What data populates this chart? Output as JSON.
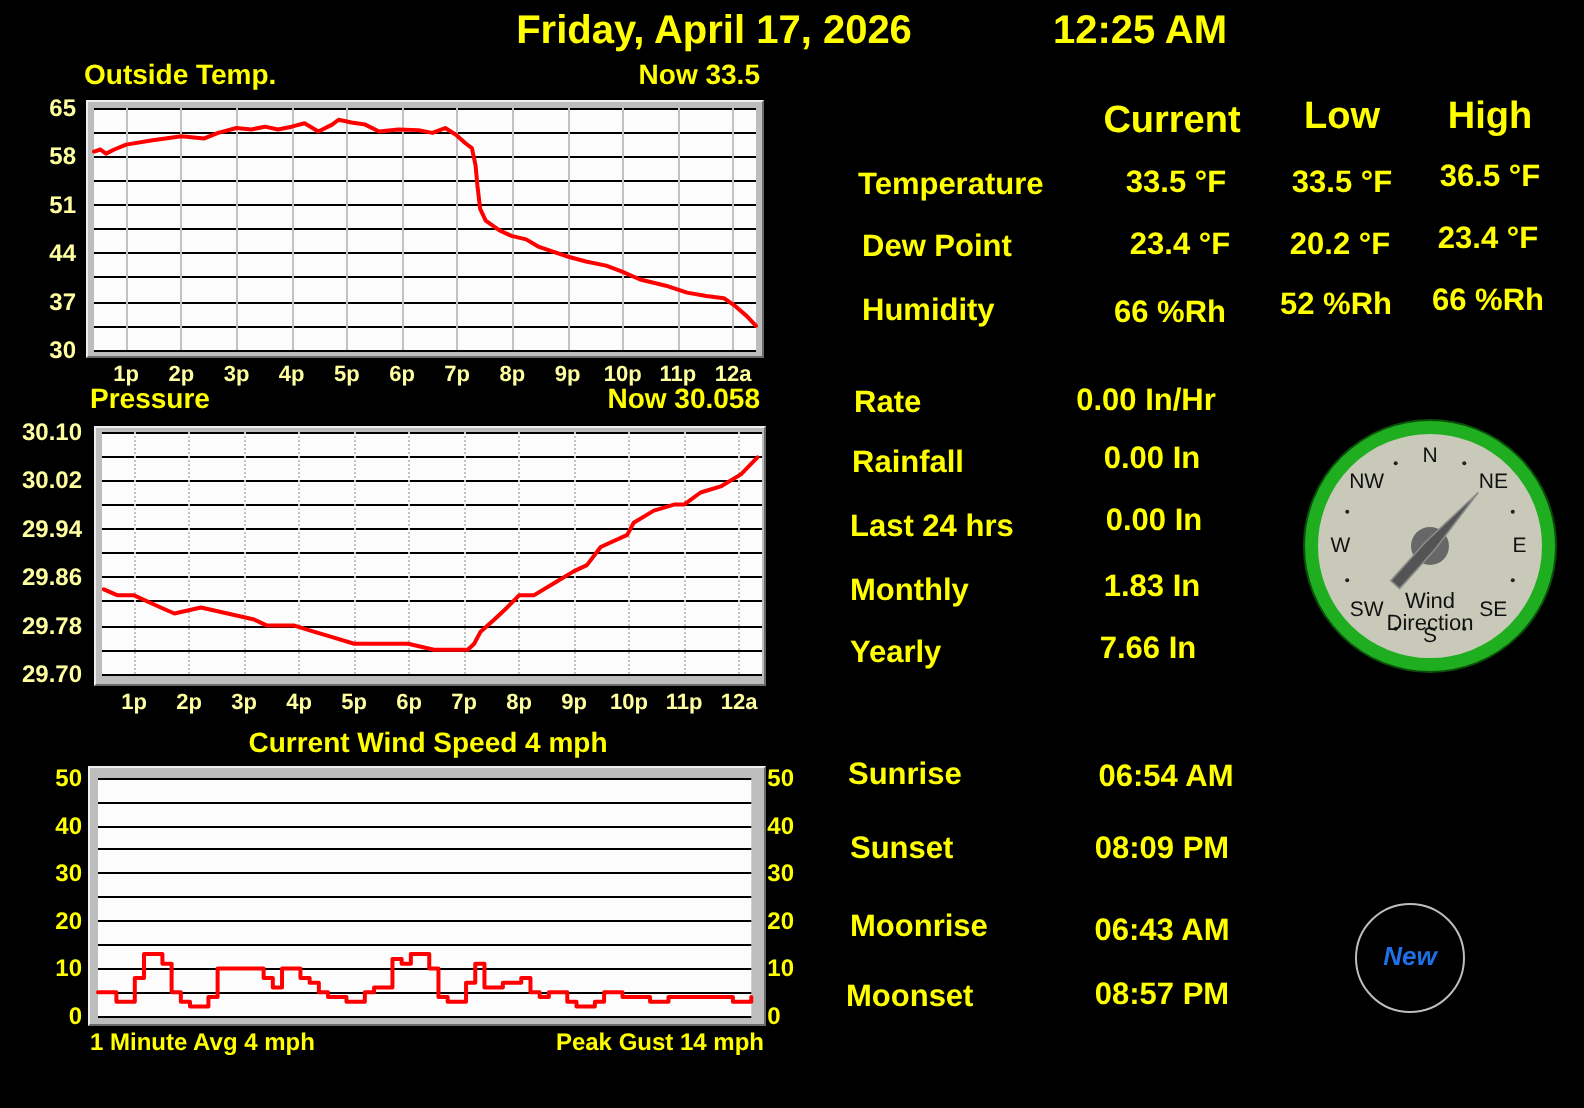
{
  "chart_data": [
    {
      "type": "other",
      "title": "Friday, April 17, 2026",
      "subtitle": "12:25 AM"
    },
    {
      "type": "line",
      "title": "Outside Temp.",
      "annotations": [
        "Now 33.5"
      ],
      "x": [
        "2026-04-16T12:25",
        "2026-04-16T12:32",
        "2026-04-16T12:38",
        "2026-04-16T12:47",
        "2026-04-16T13:00",
        "2026-04-16T13:27",
        "2026-04-16T14:00",
        "2026-04-16T14:25",
        "2026-04-16T14:40",
        "2026-04-16T15:00",
        "2026-04-16T15:16",
        "2026-04-16T15:31",
        "2026-04-16T15:45",
        "2026-04-16T16:00",
        "2026-04-16T16:14",
        "2026-04-16T16:29",
        "2026-04-16T16:44",
        "2026-04-16T16:51",
        "2026-04-16T17:05",
        "2026-04-16T17:20",
        "2026-04-16T17:35",
        "2026-04-16T17:56",
        "2026-04-16T18:18",
        "2026-04-16T18:33",
        "2026-04-16T18:47",
        "2026-04-16T18:59",
        "2026-04-16T19:09",
        "2026-04-16T19:16",
        "2026-04-16T19:20",
        "2026-04-16T19:22",
        "2026-04-16T19:25",
        "2026-04-16T19:31",
        "2026-04-16T19:46",
        "2026-04-16T19:59",
        "2026-04-16T20:15",
        "2026-04-16T20:29",
        "2026-04-16T20:58",
        "2026-04-16T21:20",
        "2026-04-16T21:42",
        "2026-04-16T21:58",
        "2026-04-16T22:19",
        "2026-04-16T22:47",
        "2026-04-16T23:10",
        "2026-04-16T23:31",
        "2026-04-16T23:50",
        "2026-04-17T00:01",
        "2026-04-17T00:15",
        "2026-04-17T00:25"
      ],
      "series": [
        {
          "color": "#ff0000",
          "values": [
            58.7,
            59,
            58.4,
            59,
            59.7,
            60.3,
            60.9,
            60.6,
            61.4,
            62.1,
            61.9,
            62.3,
            61.9,
            62.3,
            62.8,
            61.6,
            62.6,
            63.3,
            62.9,
            62.6,
            61.6,
            61.9,
            61.8,
            61.4,
            62.1,
            61.1,
            59.9,
            59.2,
            56.7,
            53.8,
            50.4,
            48.7,
            47.3,
            46.5,
            46,
            44.9,
            43.6,
            42.8,
            42.2,
            41.4,
            40.2,
            39.3,
            38.3,
            37.8,
            37.5,
            36.5,
            34.9,
            33.5
          ]
        }
      ],
      "xlim": [
        "2026-04-16T12:25",
        "2026-04-17T00:25"
      ],
      "xticks": [
        {
          "value": "2026-04-16T13:00",
          "label": "1p"
        },
        {
          "value": "2026-04-16T14:00",
          "label": "2p"
        },
        {
          "value": "2026-04-16T15:00",
          "label": "3p"
        },
        {
          "value": "2026-04-16T16:00",
          "label": "4p"
        },
        {
          "value": "2026-04-16T17:00",
          "label": "5p"
        },
        {
          "value": "2026-04-16T18:00",
          "label": "6p"
        },
        {
          "value": "2026-04-16T19:00",
          "label": "7p"
        },
        {
          "value": "2026-04-16T20:00",
          "label": "8p"
        },
        {
          "value": "2026-04-16T21:00",
          "label": "9p"
        },
        {
          "value": "2026-04-16T22:00",
          "label": "10p"
        },
        {
          "value": "2026-04-16T23:00",
          "label": "11p"
        },
        {
          "value": "2026-04-17T00:00",
          "label": "12a"
        }
      ],
      "ylim": [
        30,
        65
      ],
      "yticks": [
        30,
        {
          "value": 33.5,
          "label": null
        },
        37,
        {
          "value": 40.5,
          "label": null
        },
        44,
        {
          "value": 47.5,
          "label": null
        },
        51,
        {
          "value": 54.5,
          "label": null
        },
        58,
        {
          "value": 61.5,
          "label": null
        },
        65
      ],
      "grid": true,
      "marker": "none"
    },
    {
      "type": "line",
      "title": "Pressure",
      "annotations": [
        "Now 30.058"
      ],
      "x": [
        "2026-04-16T12:27",
        "2026-04-16T12:42",
        "2026-04-16T13:00",
        "2026-04-16T13:29",
        "2026-04-16T13:44",
        "2026-04-16T14:13",
        "2026-04-16T14:42",
        "2026-04-16T15:11",
        "2026-04-16T15:25",
        "2026-04-16T15:55",
        "2026-04-16T16:16",
        "2026-04-16T16:38",
        "2026-04-16T17:00",
        "2026-04-16T17:37",
        "2026-04-16T17:59",
        "2026-04-16T18:27",
        "2026-04-16T19:04",
        "2026-04-16T19:11",
        "2026-04-16T19:18",
        "2026-04-16T19:33",
        "2026-04-16T19:47",
        "2026-04-16T20:00",
        "2026-04-16T20:16",
        "2026-04-16T20:38",
        "2026-04-16T21:00",
        "2026-04-16T21:14",
        "2026-04-16T21:29",
        "2026-04-16T21:58",
        "2026-04-16T22:05",
        "2026-04-16T22:27",
        "2026-04-16T22:49",
        "2026-04-16T23:00",
        "2026-04-16T23:18",
        "2026-04-16T23:40",
        "2026-04-17T00:02",
        "2026-04-17T00:20"
      ],
      "series": [
        {
          "color": "#ff0000",
          "values": [
            29.84,
            29.83,
            29.83,
            29.81,
            29.8,
            29.81,
            29.8,
            29.79,
            29.78,
            29.78,
            29.77,
            29.76,
            29.75,
            29.75,
            29.75,
            29.74,
            29.74,
            29.75,
            29.77,
            29.79,
            29.81,
            29.83,
            29.83,
            29.85,
            29.87,
            29.88,
            29.91,
            29.93,
            29.95,
            29.97,
            29.98,
            29.98,
            30.0,
            30.01,
            30.03,
            30.058
          ]
        }
      ],
      "xlim": [
        "2026-04-16T12:25",
        "2026-04-17T00:25"
      ],
      "xticks": [
        {
          "value": "2026-04-16T13:00",
          "label": "1p"
        },
        {
          "value": "2026-04-16T14:00",
          "label": "2p"
        },
        {
          "value": "2026-04-16T15:00",
          "label": "3p"
        },
        {
          "value": "2026-04-16T16:00",
          "label": "4p"
        },
        {
          "value": "2026-04-16T17:00",
          "label": "5p"
        },
        {
          "value": "2026-04-16T18:00",
          "label": "6p"
        },
        {
          "value": "2026-04-16T19:00",
          "label": "7p"
        },
        {
          "value": "2026-04-16T20:00",
          "label": "8p"
        },
        {
          "value": "2026-04-16T21:00",
          "label": "9p"
        },
        {
          "value": "2026-04-16T22:00",
          "label": "10p"
        },
        {
          "value": "2026-04-16T23:00",
          "label": "11p"
        },
        {
          "value": "2026-04-17T00:00",
          "label": "12a"
        }
      ],
      "ylim": [
        29.7,
        30.1
      ],
      "yticks": [
        {
          "value": 29.7,
          "label": "29.70"
        },
        {
          "value": 29.74,
          "label": null
        },
        29.78,
        {
          "value": 29.82,
          "label": null
        },
        29.86,
        {
          "value": 29.9,
          "label": null
        },
        29.94,
        {
          "value": 29.98,
          "label": null
        },
        30.02,
        {
          "value": 30.06,
          "label": null
        },
        {
          "value": 30.1,
          "label": "30.10"
        }
      ],
      "grid": true,
      "marker": "none"
    },
    {
      "type": "step",
      "title": "Current Wind Speed 4 mph",
      "annotations": [
        "1 Minute Avg 4 mph",
        "Peak Gust 14 mph"
      ],
      "categories": [
        null,
        null,
        null,
        null,
        null,
        null,
        null,
        null,
        null,
        null,
        null,
        null,
        null,
        null,
        null,
        null,
        null,
        null,
        null,
        null,
        null,
        null,
        null,
        null,
        null,
        null,
        null,
        null,
        null,
        null,
        null,
        null,
        null,
        null,
        null,
        null,
        null,
        null,
        null,
        null,
        null,
        null,
        null,
        null,
        null,
        null,
        null,
        null,
        null,
        null,
        null,
        null,
        null,
        null,
        null,
        null,
        null,
        null,
        null,
        null,
        null,
        null,
        null,
        null,
        null,
        null,
        null,
        null,
        null,
        null,
        null,
        null
      ],
      "series": [
        {
          "color": "#ff0000",
          "values": [
            5,
            5,
            3,
            3,
            8,
            13,
            13,
            11,
            5,
            3,
            2,
            2,
            4,
            10,
            10,
            10,
            10,
            10,
            8,
            6,
            10,
            10,
            8,
            7,
            5,
            4,
            4,
            3,
            3,
            5,
            6,
            6,
            12,
            11,
            13,
            13,
            10,
            4,
            3,
            3,
            7,
            11,
            6,
            6,
            7,
            7,
            8,
            5,
            4,
            5,
            5,
            3,
            2,
            2,
            3,
            5,
            5,
            4,
            4,
            4,
            3,
            3,
            4,
            4,
            4,
            4,
            4,
            4,
            4,
            3,
            3,
            4
          ]
        }
      ],
      "ylim": [
        0,
        50
      ],
      "yticks": [
        0,
        {
          "value": 5,
          "label": null
        },
        10,
        {
          "value": 15,
          "label": null
        },
        20,
        {
          "value": 25,
          "label": null
        },
        30,
        {
          "value": 35,
          "label": null
        },
        40,
        {
          "value": 45,
          "label": null
        },
        50
      ],
      "y2lim": [
        0,
        50
      ],
      "y2ticks": [
        0,
        10,
        20,
        30,
        40,
        50
      ],
      "grid": "y",
      "marker": "none"
    },
    {
      "type": "other",
      "annotations": [
        "Current",
        "Low",
        "High",
        "Temperature",
        "33.5 °F",
        "33.5 °F",
        "36.5 °F",
        "Dew Point",
        "23.4 °F",
        "20.2 °F",
        "23.4 °F",
        "Humidity",
        "66 %Rh",
        "52 %Rh",
        "66 %Rh",
        "Rate",
        "0.00 In/Hr",
        "Rainfall",
        "0.00 In",
        "Last 24 hrs",
        "0.00 In",
        "Monthly",
        "1.83 In",
        "Yearly",
        "7.66 In",
        "Sunrise",
        "06:54 AM",
        "Sunset",
        "08:09 PM",
        "Moonrise",
        "06:43 AM",
        "Moonset",
        "08:57 PM",
        "New"
      ]
    },
    {
      "type": "other",
      "title": "Wind Direction",
      "annotations": [
        "N",
        "NE",
        "E",
        "SE",
        "S",
        "SW",
        "W",
        "NW"
      ]
    }
  ]
}
